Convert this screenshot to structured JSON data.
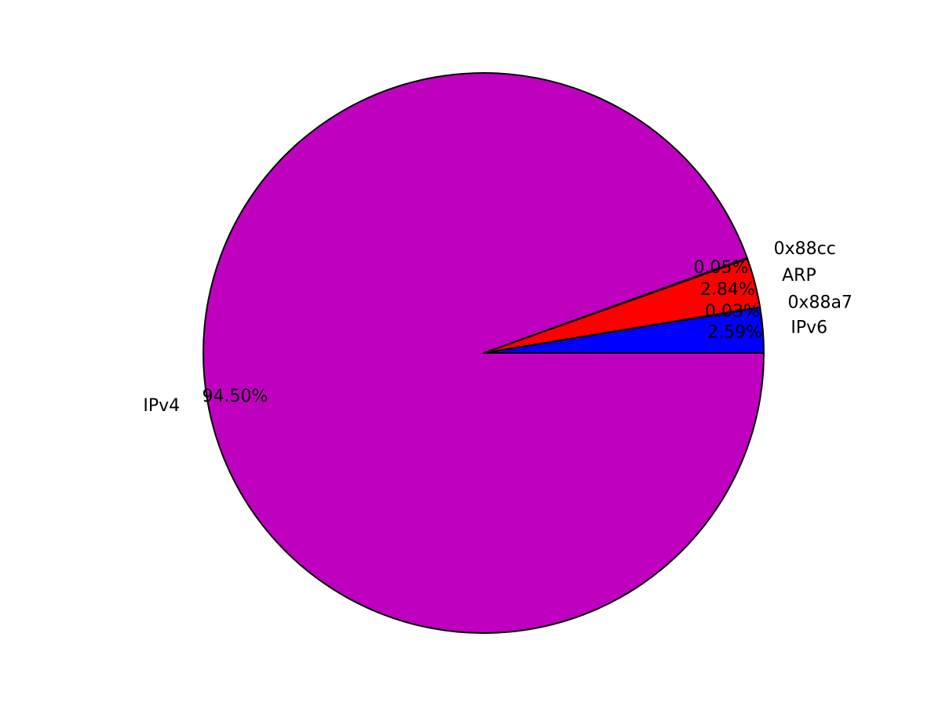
{
  "chart_data": {
    "type": "pie",
    "start_angle_deg": 0,
    "direction": "counterclockwise",
    "slices": [
      {
        "label": "IPv6",
        "value": 2.59,
        "pct_label": "2.59%",
        "color": "#0000ff"
      },
      {
        "label": "0x88a7",
        "value": 0.03,
        "pct_label": "0.03%",
        "color": "#00bfbf"
      },
      {
        "label": "ARP",
        "value": 2.84,
        "pct_label": "2.84%",
        "color": "#ff0000"
      },
      {
        "label": "0x88cc",
        "value": 0.05,
        "pct_label": "0.05%",
        "color": "#00ffff"
      },
      {
        "label": "IPv4",
        "value": 94.5,
        "pct_label": "94.50%",
        "color": "#bf00bf"
      }
    ]
  }
}
